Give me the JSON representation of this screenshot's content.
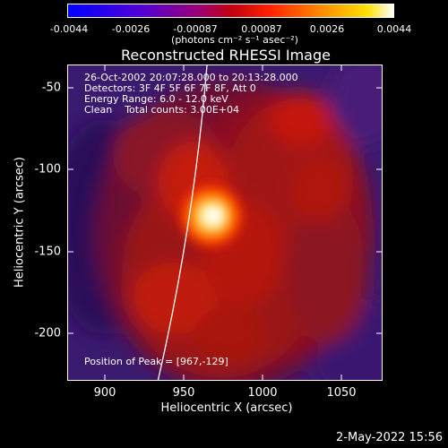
{
  "colorbar": {
    "ticks": [
      "-0.0044",
      "-0.0026",
      "-0.00087",
      "0.00087",
      "0.0026",
      "0.0044"
    ],
    "units": "(photons cm⁻² s⁻¹ asec⁻²)",
    "colors": [
      "#0000ff",
      "#6e00c8",
      "#a00060",
      "#d40000",
      "#ff6000",
      "#ffd000",
      "#ffffff"
    ]
  },
  "plot": {
    "title": "Reconstructed RHESSI Image",
    "info": {
      "time_range": "26-Oct-2002 20:07:28.000 to 20:13:28.000",
      "detectors": "Detectors: 3F 4F 5F 6F 7F 8F, Att 0",
      "energy": "Energy Range: 6.0 - 12.0 keV",
      "clean": "Clean    Total counts: 3.00E+04"
    },
    "peak": "Position of Peak = [967,-129]",
    "x_label": "Heliocentric X (arcsec)",
    "y_label": "Heliocentric Y (arcsec)",
    "x_ticks": [
      "900",
      "950",
      "1000",
      "1050"
    ],
    "y_ticks": [
      "-50",
      "-100",
      "-150",
      "-200"
    ]
  },
  "footer": {
    "timestamp": "2-May-2022 15:56"
  }
}
